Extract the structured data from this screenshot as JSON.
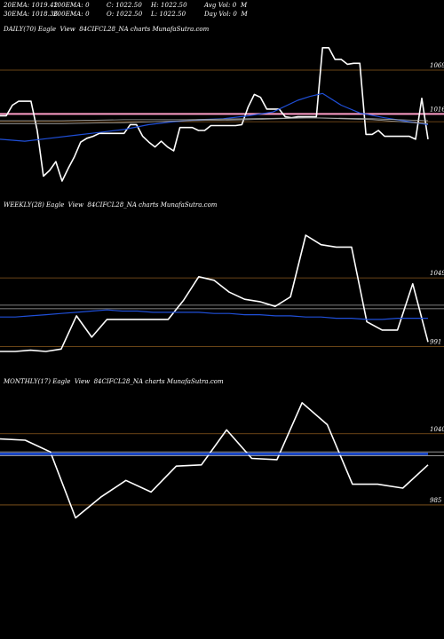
{
  "header": {
    "row1": [
      "20EMA: 1019.42",
      "100EMA: 0",
      "C: 1022.50",
      "H: 1022.50",
      "Avg Vol: 0  M"
    ],
    "row2": [
      "30EMA: 1018.36",
      "200EMA: 0",
      "O: 1022.50",
      "L: 1022.50",
      "Day Vol: 0  M"
    ]
  },
  "colors": {
    "background": "#000000",
    "price_line": "#ffffff",
    "ema_line": "#1f4fd8",
    "gray_line": "#a9a9a9",
    "pink_line": "#ff9ec8",
    "level_line": "#8b5a1e"
  },
  "chart_data": [
    {
      "type": "line",
      "title": "DAILY(70) Eagle  View  84CIFCL28_NA charts MunafaSutra.com",
      "ylim": [
        945,
        1100
      ],
      "level_labels": [
        "1069",
        "1016"
      ],
      "levels": [
        {
          "value": 1069,
          "color": "#8b5a1e"
        },
        {
          "value": 1024,
          "color": "#ff9ec8"
        },
        {
          "value": 1016,
          "color": "#8b5a1e"
        }
      ],
      "series": [
        {
          "color": "#ffffff",
          "width": 1.6,
          "x": [
            0,
            1,
            2,
            3,
            4,
            5,
            6,
            7,
            8,
            9,
            10,
            11,
            12,
            13,
            14,
            15,
            16,
            17,
            18,
            19,
            20,
            21,
            22,
            23,
            24,
            25,
            26,
            27,
            28,
            29,
            30,
            31,
            32,
            33,
            34,
            35,
            36,
            37,
            38,
            39,
            40,
            41,
            42,
            43,
            44,
            45,
            46,
            47,
            48,
            49,
            50,
            51,
            52,
            53,
            54,
            55,
            56,
            57,
            58,
            59,
            60,
            61,
            62,
            63,
            64,
            65,
            66,
            67,
            68,
            69
          ],
          "values": [
            1022,
            1022,
            1033,
            1037,
            1037,
            1037,
            1007,
            960,
            966,
            975,
            955,
            968,
            980,
            995,
            999,
            1001,
            1004,
            1004,
            1004,
            1004,
            1004,
            1013,
            1013,
            1001,
            995,
            990,
            996,
            990,
            986,
            1010,
            1010,
            1010,
            1007,
            1007,
            1012,
            1012,
            1012,
            1012,
            1012,
            1013,
            1031,
            1044,
            1041,
            1029,
            1029,
            1029,
            1021,
            1020,
            1021,
            1021,
            1021,
            1021,
            1092,
            1092,
            1080,
            1080,
            1075,
            1076,
            1076,
            1003,
            1003,
            1007,
            1001,
            1001,
            1001,
            1001,
            1001,
            998,
            1040,
            998
          ]
        },
        {
          "color": "#1f4fd8",
          "width": 1.2,
          "x": [
            0,
            4,
            8,
            12,
            16,
            20,
            24,
            28,
            32,
            36,
            40,
            44,
            48,
            50,
            52,
            55,
            58,
            62,
            66,
            69
          ],
          "values": [
            998,
            996,
            999,
            1002,
            1005,
            1008,
            1013,
            1016,
            1018,
            1019,
            1022,
            1026,
            1038,
            1042,
            1045,
            1033,
            1025,
            1020,
            1016,
            1013
          ]
        },
        {
          "color": "#a9a9a9",
          "width": 0.8,
          "x": [
            0,
            10,
            20,
            30,
            40,
            50,
            60,
            69
          ],
          "values": [
            1014,
            1014,
            1015,
            1017,
            1018,
            1020,
            1018,
            1014
          ]
        },
        {
          "color": "#a9a9a9",
          "width": 0.8,
          "x": [
            0,
            10,
            20,
            30,
            40,
            50,
            60,
            69
          ],
          "values": [
            1017,
            1017,
            1018,
            1018,
            1019,
            1020,
            1019,
            1017
          ]
        }
      ]
    },
    {
      "type": "line",
      "title": "WEEKLY(28) Eagle  View  84CIFCL28_NA charts MunafaSutra.com",
      "ylim": [
        975,
        1100
      ],
      "level_labels": [
        "1049",
        "991"
      ],
      "levels": [
        {
          "value": 1049,
          "color": "#8b5a1e"
        },
        {
          "value": 991,
          "color": "#8b5a1e"
        },
        {
          "value": 1026,
          "color": "#a9a9a9"
        },
        {
          "value": 1023,
          "color": "#a9a9a9"
        }
      ],
      "series": [
        {
          "color": "#ffffff",
          "width": 1.6,
          "x": [
            0,
            1,
            2,
            3,
            4,
            5,
            6,
            7,
            8,
            9,
            10,
            11,
            12,
            13,
            14,
            15,
            16,
            17,
            18,
            19,
            20,
            21,
            22,
            23,
            24,
            25,
            26,
            27,
            28
          ],
          "values": [
            987,
            987,
            988,
            987,
            989,
            1017,
            999,
            1014,
            1014,
            1014,
            1014,
            1014,
            1030,
            1050,
            1047,
            1037,
            1031,
            1029,
            1025,
            1033,
            1085,
            1077,
            1075,
            1075,
            1012,
            1005,
            1005,
            1044,
            995
          ]
        },
        {
          "color": "#1f4fd8",
          "width": 1.2,
          "x": [
            0,
            1,
            2,
            3,
            4,
            5,
            6,
            7,
            8,
            9,
            10,
            11,
            12,
            13,
            14,
            15,
            16,
            17,
            18,
            19,
            20,
            21,
            22,
            23,
            24,
            25,
            26,
            27,
            28
          ],
          "values": [
            1016,
            1016,
            1017,
            1018,
            1019,
            1020,
            1021,
            1022,
            1021,
            1021,
            1020,
            1020,
            1020,
            1020,
            1019,
            1019,
            1018,
            1018,
            1017,
            1017,
            1016,
            1016,
            1015,
            1015,
            1014,
            1014,
            1015,
            1015,
            1015
          ]
        }
      ]
    },
    {
      "type": "line",
      "title": "MONTHLY(17) Eagle  View  84CIFCL28_NA charts MunafaSutra.com",
      "ylim": [
        950,
        1070
      ],
      "level_labels": [
        "1040",
        "985"
      ],
      "levels": [
        {
          "value": 1040,
          "color": "#8b5a1e"
        },
        {
          "value": 985,
          "color": "#8b5a1e"
        },
        {
          "value": 1026,
          "color": "#a9a9a9"
        },
        {
          "value": 1023,
          "color": "#a9a9a9"
        }
      ],
      "series": [
        {
          "color": "#ffffff",
          "width": 1.6,
          "x": [
            0,
            1,
            2,
            3,
            4,
            5,
            6,
            7,
            8,
            9,
            10,
            11,
            12,
            13,
            14,
            15,
            16,
            17
          ],
          "values": [
            1036,
            1035,
            1026,
            975,
            991,
            1004,
            995,
            1015,
            1016,
            1043,
            1021,
            1020,
            1064,
            1047,
            1001,
            1001,
            998,
            1016
          ]
        },
        {
          "color": "#1f4fd8",
          "width": 2.6,
          "x": [
            0,
            17
          ],
          "values": [
            1024.5,
            1024.5
          ]
        }
      ]
    }
  ]
}
